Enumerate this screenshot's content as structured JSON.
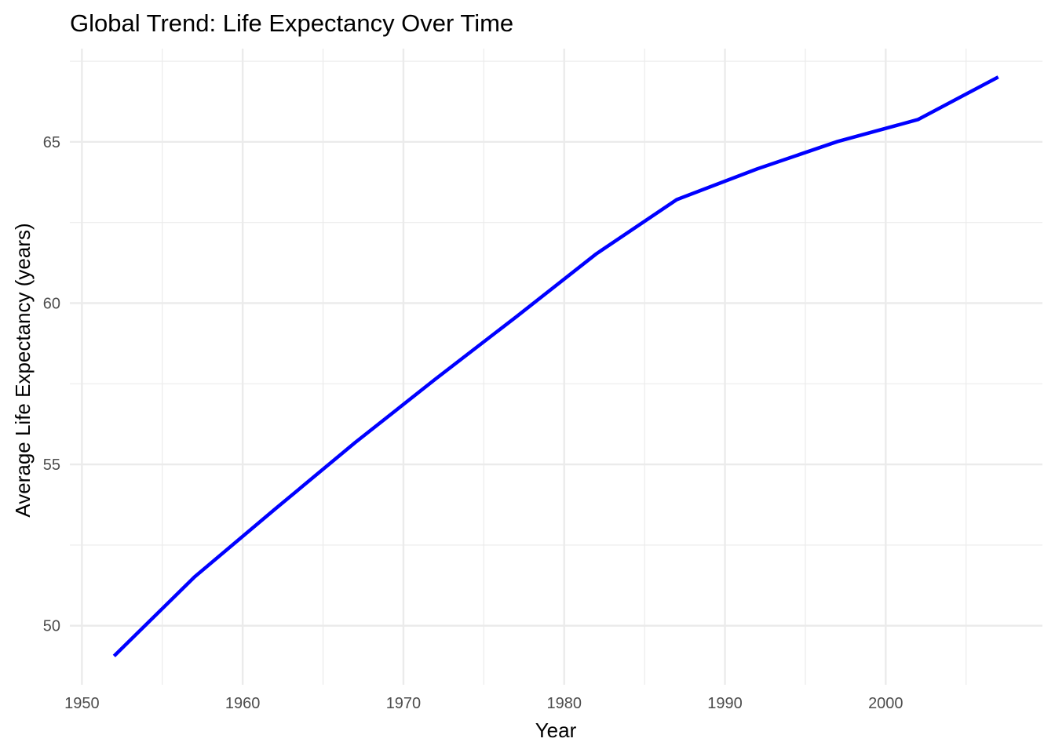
{
  "chart_data": {
    "type": "line",
    "title": "Global Trend: Life Expectancy Over Time",
    "xlabel": "Year",
    "ylabel": "Average Life Expectancy (years)",
    "xlim": [
      1949.25,
      2009.75
    ],
    "ylim": [
      48.17,
      67.89
    ],
    "x_ticks": [
      1950,
      1960,
      1970,
      1980,
      1990,
      2000
    ],
    "x_tick_labels": [
      "1950",
      "1960",
      "1970",
      "1980",
      "1990",
      "2000"
    ],
    "x_minor_ticks": [
      1955,
      1965,
      1975,
      1985,
      1995,
      2005
    ],
    "y_ticks": [
      50,
      55,
      60,
      65
    ],
    "y_tick_labels": [
      "50",
      "55",
      "60",
      "65"
    ],
    "y_minor_ticks": [
      52.5,
      57.5,
      62.5,
      67.5
    ],
    "grid": true,
    "legend": "none",
    "series": [
      {
        "color": "#0000ff",
        "x": [
          1952,
          1957,
          1962,
          1967,
          1972,
          1977,
          1982,
          1987,
          1992,
          1997,
          2002,
          2007
        ],
        "y": [
          49.06,
          51.51,
          53.61,
          55.68,
          57.65,
          59.57,
          61.53,
          63.21,
          64.16,
          65.01,
          65.69,
          67.01
        ]
      }
    ]
  }
}
